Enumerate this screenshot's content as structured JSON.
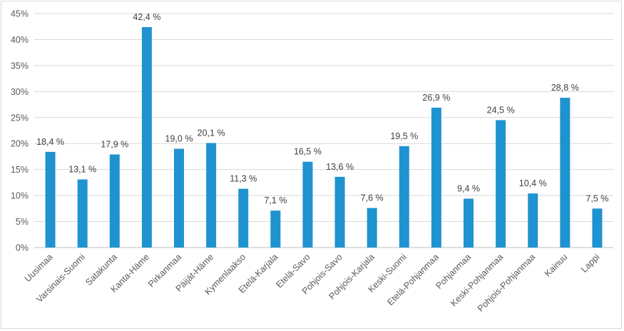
{
  "chart_data": {
    "type": "bar",
    "title": "",
    "xlabel": "",
    "ylabel": "",
    "ylim": [
      0,
      45
    ],
    "ytick_step": 5,
    "ytick_labels": [
      "0%",
      "5%",
      "10%",
      "15%",
      "20%",
      "25%",
      "30%",
      "35%",
      "40%",
      "45%"
    ],
    "categories": [
      "Uusimaa",
      "Varsinais-Suomi",
      "Satakunta",
      "Kanta-Häme",
      "Pirkanmaa",
      "Päijät-Häme",
      "Kymenlaakso",
      "Etelä-Karjala",
      "Etelä-Savo",
      "Pohjois-Savo",
      "Pohjois-Karjala",
      "Keski-Suomi",
      "Etelä-Pohjanmaa",
      "Pohjanmaa",
      "Keski-Pohjanmaa",
      "Pohjois-Pohjanmaa",
      "Kainuu",
      "Lappi"
    ],
    "values": [
      18.4,
      13.1,
      17.9,
      42.4,
      19.0,
      20.1,
      11.3,
      7.1,
      16.5,
      13.6,
      7.6,
      19.5,
      26.9,
      9.4,
      24.5,
      10.4,
      28.8,
      7.5
    ],
    "data_labels": [
      "18,4 %",
      "13,1 %",
      "17,9 %",
      "42,4 %",
      "19,0 %",
      "20,1 %",
      "11,3 %",
      "7,1 %",
      "16,5 %",
      "13,6 %",
      "7,6 %",
      "19,5 %",
      "26,9 %",
      "9,4 %",
      "24,5 %",
      "10,4 %",
      "28,8 %",
      "7,5 %"
    ],
    "bar_color": "#1f93d0",
    "grid": true,
    "legend": "none"
  }
}
